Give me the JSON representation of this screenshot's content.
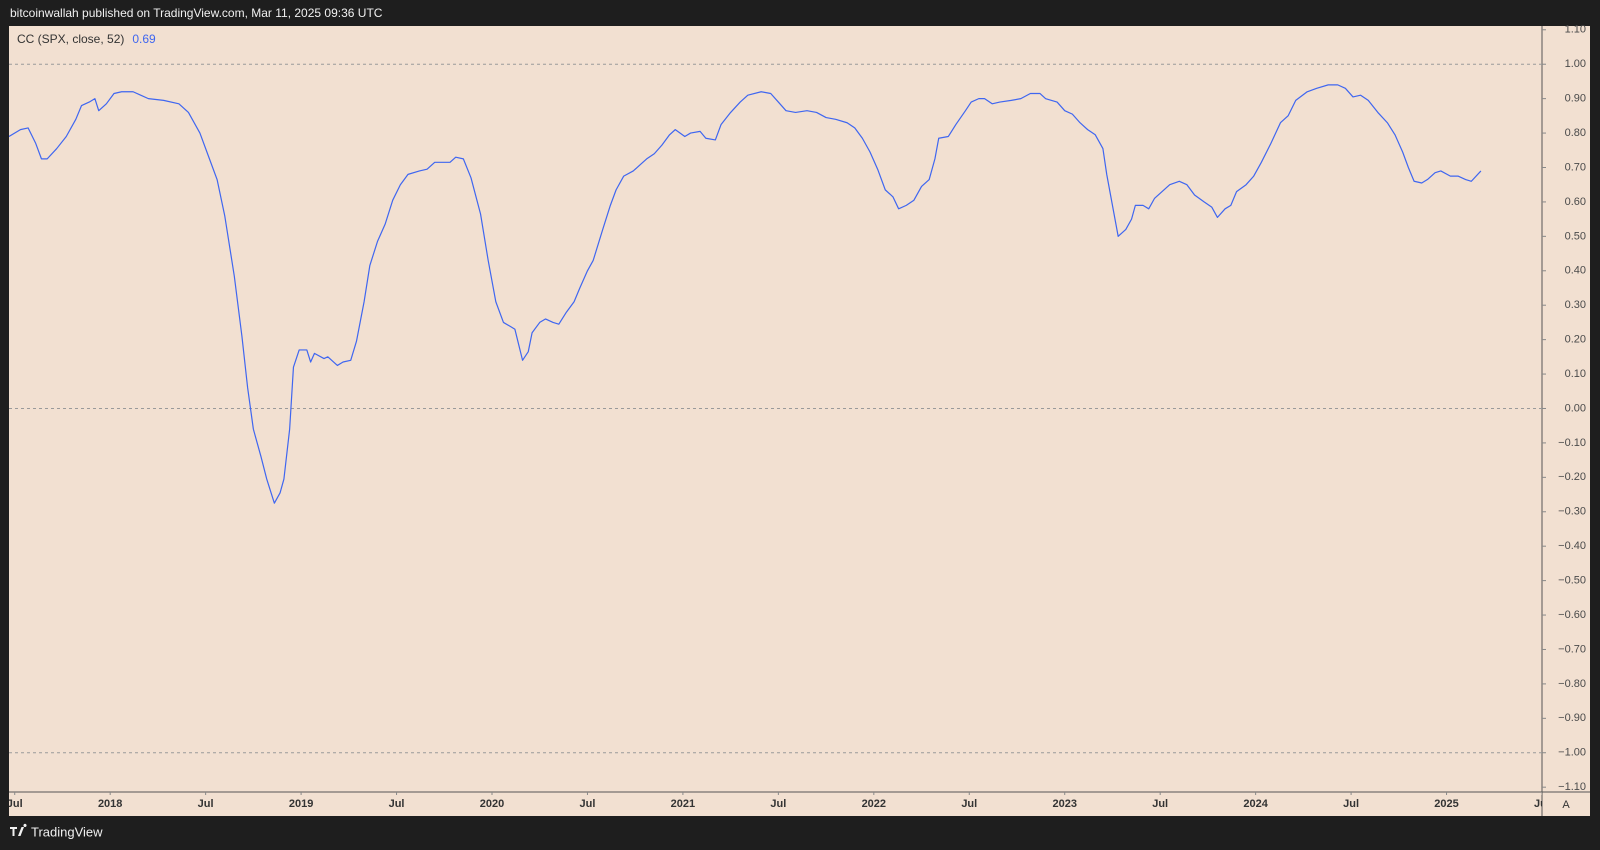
{
  "header": "bitcoinwallah published on TradingView.com, Mar 11, 2025 09:36 UTC",
  "footer": "TradingView",
  "scale_button": "A",
  "chart_data": {
    "type": "line",
    "series": [
      {
        "name": "CC (SPX, close, 52)",
        "color": "#3f66f0",
        "values": [
          0.79,
          0.81,
          0.815,
          0.77,
          0.725,
          0.725,
          0.755,
          0.79,
          0.84,
          0.88,
          0.89,
          0.9,
          0.865,
          0.885,
          0.915,
          0.92,
          0.92,
          0.91,
          0.9,
          0.895,
          0.885,
          0.86,
          0.8,
          0.725,
          0.665,
          0.56,
          0.385,
          0.21,
          0.06,
          -0.06,
          -0.14,
          -0.205,
          -0.275,
          -0.245,
          -0.205,
          -0.06,
          0.12,
          0.17,
          0.17,
          0.135,
          0.16,
          0.145,
          0.15,
          0.125,
          0.135,
          0.14,
          0.195,
          0.31,
          0.415,
          0.485,
          0.535,
          0.605,
          0.65,
          0.68,
          0.69,
          0.695,
          0.715,
          0.715,
          0.715,
          0.73,
          0.725,
          0.67,
          0.565,
          0.43,
          0.31,
          0.25,
          0.237,
          0.23,
          0.14,
          0.165,
          0.22,
          0.25,
          0.26,
          0.25,
          0.245,
          0.28,
          0.31,
          0.35,
          0.4,
          0.43,
          0.52,
          0.59,
          0.635,
          0.675,
          0.69,
          0.71,
          0.725,
          0.74,
          0.765,
          0.795,
          0.81,
          0.79,
          0.8,
          0.805,
          0.785,
          0.78,
          0.825,
          0.86,
          0.89,
          0.91,
          0.92,
          0.915,
          0.89,
          0.865,
          0.86,
          0.865,
          0.86,
          0.845,
          0.84,
          0.83,
          0.815,
          0.785,
          0.745,
          0.695,
          0.635,
          0.615,
          0.58,
          0.59,
          0.605,
          0.645,
          0.665,
          0.725,
          0.785,
          0.79,
          0.825,
          0.865,
          0.89,
          0.9,
          0.9,
          0.885,
          0.89,
          0.895,
          0.9,
          0.915,
          0.915,
          0.9,
          0.89,
          0.865,
          0.855,
          0.83,
          0.81,
          0.795,
          0.755,
          0.68,
          0.59,
          0.5,
          0.52,
          0.55,
          0.59,
          0.59,
          0.58,
          0.61,
          0.63,
          0.65,
          0.66,
          0.65,
          0.62,
          0.6,
          0.585,
          0.555,
          0.58,
          0.59,
          0.63,
          0.65,
          0.675,
          0.715,
          0.77,
          0.83,
          0.85,
          0.895,
          0.92,
          0.93,
          0.94,
          0.94,
          0.93,
          0.905,
          0.91,
          0.895,
          0.86,
          0.83,
          0.795,
          0.745,
          0.7,
          0.66,
          0.655,
          0.665,
          0.685,
          0.69,
          0.675,
          0.675,
          0.665,
          0.66,
          0.69
        ]
      }
    ],
    "x": [
      2017.47,
      2017.53,
      2017.57,
      2017.61,
      2017.64,
      2017.67,
      2017.72,
      2017.77,
      2017.82,
      2017.85,
      2017.89,
      2017.92,
      2017.94,
      2017.98,
      2018.02,
      2018.06,
      2018.12,
      2018.16,
      2018.2,
      2018.28,
      2018.36,
      2018.41,
      2018.47,
      2018.52,
      2018.56,
      2018.6,
      2018.65,
      2018.69,
      2018.72,
      2018.75,
      2018.79,
      2018.82,
      2018.86,
      2018.89,
      2018.91,
      2018.94,
      2018.96,
      2018.99,
      2019.03,
      2019.05,
      2019.07,
      2019.12,
      2019.14,
      2019.19,
      2019.22,
      2019.26,
      2019.29,
      2019.33,
      2019.36,
      2019.4,
      2019.44,
      2019.48,
      2019.52,
      2019.56,
      2019.62,
      2019.66,
      2019.7,
      2019.74,
      2019.78,
      2019.81,
      2019.85,
      2019.89,
      2019.94,
      2019.98,
      2020.02,
      2020.06,
      2020.1,
      2020.12,
      2020.16,
      2020.19,
      2020.21,
      2020.25,
      2020.28,
      2020.32,
      2020.35,
      2020.39,
      2020.43,
      2020.46,
      2020.5,
      2020.53,
      2020.58,
      2020.62,
      2020.65,
      2020.69,
      2020.74,
      2020.78,
      2020.81,
      2020.85,
      2020.89,
      2020.93,
      2020.96,
      2021.01,
      2021.04,
      2021.09,
      2021.12,
      2021.17,
      2021.2,
      2021.25,
      2021.3,
      2021.34,
      2021.41,
      2021.46,
      2021.5,
      2021.54,
      2021.59,
      2021.65,
      2021.7,
      2021.75,
      2021.8,
      2021.86,
      2021.9,
      2021.94,
      2021.98,
      2022.02,
      2022.06,
      2022.1,
      2022.13,
      2022.17,
      2022.21,
      2022.25,
      2022.29,
      2022.32,
      2022.34,
      2022.39,
      2022.43,
      2022.48,
      2022.51,
      2022.55,
      2022.58,
      2022.62,
      2022.66,
      2022.72,
      2022.77,
      2022.82,
      2022.87,
      2022.9,
      2022.96,
      2023.0,
      2023.04,
      2023.08,
      2023.12,
      2023.16,
      2023.2,
      2023.22,
      2023.25,
      2023.28,
      2023.32,
      2023.35,
      2023.37,
      2023.41,
      2023.44,
      2023.47,
      2023.51,
      2023.55,
      2023.6,
      2023.64,
      2023.68,
      2023.73,
      2023.77,
      2023.8,
      2023.84,
      2023.87,
      2023.9,
      2023.95,
      2023.99,
      2024.03,
      2024.08,
      2024.13,
      2024.17,
      2024.21,
      2024.27,
      2024.32,
      2024.38,
      2024.43,
      2024.47,
      2024.51,
      2024.55,
      2024.59,
      2024.64,
      2024.69,
      2024.73,
      2024.77,
      2024.8,
      2024.83,
      2024.87,
      2024.9,
      2024.94,
      2024.97,
      2025.02,
      2025.06,
      2025.1,
      2025.13,
      2025.18
    ],
    "xlim": [
      2017.47,
      2025.5
    ],
    "xticks": [
      {
        "value": 2017.5,
        "label": "Jul"
      },
      2018,
      {
        "value": 2018.5,
        "label": "Jul"
      },
      2019,
      {
        "value": 2019.5,
        "label": "Jul"
      },
      2020,
      {
        "value": 2020.5,
        "label": "Jul"
      },
      2021,
      {
        "value": 2021.5,
        "label": "Jul"
      },
      2022,
      {
        "value": 2022.5,
        "label": "Jul"
      },
      2023,
      {
        "value": 2023.5,
        "label": "Jul"
      },
      2024,
      {
        "value": 2024.5,
        "label": "Jul"
      },
      2025,
      {
        "value": 2025.5,
        "label": "Jul"
      }
    ],
    "ylim": [
      -1.114,
      1.111
    ],
    "yticks": [
      {
        "value": 1.1,
        "label": "1.10"
      },
      {
        "value": 1,
        "label": "1.00"
      },
      {
        "value": 0.9,
        "label": "0.90"
      },
      {
        "value": 0.8,
        "label": "0.80"
      },
      {
        "value": 0.7,
        "label": "0.70"
      },
      {
        "value": 0.6,
        "label": "0.60"
      },
      {
        "value": 0.5,
        "label": "0.50"
      },
      {
        "value": 0.4,
        "label": "0.40"
      },
      {
        "value": 0.3,
        "label": "0.30"
      },
      {
        "value": 0.2,
        "label": "0.20"
      },
      {
        "value": 0.1,
        "label": "0.10"
      },
      {
        "value": 0,
        "label": "0.00"
      },
      {
        "value": -0.1,
        "label": "−0.10"
      },
      {
        "value": -0.2,
        "label": "−0.20"
      },
      {
        "value": -0.3,
        "label": "−0.30"
      },
      {
        "value": -0.4,
        "label": "−0.40"
      },
      {
        "value": -0.5,
        "label": "−0.50"
      },
      {
        "value": -0.6,
        "label": "−0.60"
      },
      {
        "value": -0.7,
        "label": "−0.70"
      },
      {
        "value": -0.8,
        "label": "−0.80"
      },
      {
        "value": -0.9,
        "label": "−0.90"
      },
      {
        "value": -1,
        "label": "−1.00"
      },
      {
        "value": -1.1,
        "label": "−1.10"
      }
    ],
    "hlines": [
      1,
      0,
      -1
    ],
    "grid": false,
    "legend": "top-left"
  }
}
